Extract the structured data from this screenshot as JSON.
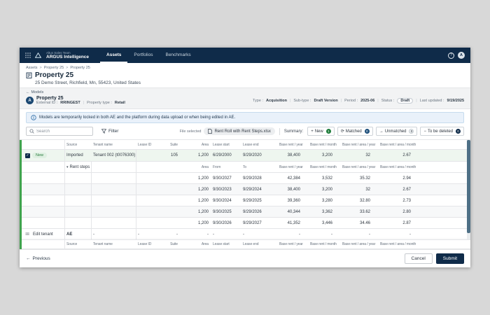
{
  "colors": {
    "navy": "#0f2b49",
    "green": "#3fa34d",
    "green-dark": "#1f7d3c",
    "row-green": "#eef6ef",
    "banner-bg": "#e9f1fa",
    "banner-border": "#c6dbee",
    "slate-scrollbar": "#4e7086",
    "border": "#e4e5e8"
  },
  "icons": {
    "help": "?",
    "avatar": "A",
    "back_arrow": "←",
    "check": "✓",
    "caret_down": "▾",
    "drag": "≡≡",
    "breadcrumb_sep": ">"
  },
  "topbar": {
    "team": "Altus Sales Team",
    "app": "ARGUS Intelligence",
    "tabs": [
      {
        "label": "Assets",
        "active": true
      },
      {
        "label": "Portfolios",
        "active": false
      },
      {
        "label": "Benchmarks",
        "active": false
      }
    ]
  },
  "breadcrumb": [
    "Assets",
    "Property 25",
    "Property 25"
  ],
  "page": {
    "title": "Property 25",
    "address": "25 Demo Street, Richfield, Mn, 55423, United States"
  },
  "model": {
    "back": "Models",
    "avatar": "A",
    "name": "Property 25",
    "meta_left": [
      {
        "label": "External ID",
        "value": "RRINGEST"
      },
      {
        "label": "Property type",
        "value": "Retail"
      }
    ],
    "meta_right": [
      {
        "label": "Type",
        "value": "Acquisition"
      },
      {
        "label": "Sub-type",
        "value": "Draft Version"
      },
      {
        "label": "Period",
        "value": "2025-06"
      },
      {
        "label": "Status",
        "value": "Draft",
        "pill": true
      },
      {
        "label": "Last updated",
        "value": "9/19/2025"
      }
    ]
  },
  "banner": {
    "text": "Models are temporarily locked in both AE and the platform during data upload or when being edited in AE."
  },
  "toolbar": {
    "search_placeholder": "Search",
    "filter": "Filter",
    "file_selected": "File selected",
    "file_name": "Rent Roll with Rent Steps.xlsx",
    "summary": "Summary:",
    "chips": [
      {
        "icon": "+",
        "label": "New",
        "count": "1",
        "badge": "green"
      },
      {
        "icon": "⟳",
        "label": "Matched",
        "count": "0",
        "badge": "navy"
      },
      {
        "icon": "→",
        "label": "Unmatched",
        "count": "0",
        "badge": "light"
      },
      {
        "icon": "−",
        "label": "To be deleted",
        "count": "0",
        "badge": "dark"
      }
    ]
  },
  "table": {
    "headers": [
      "",
      "Source",
      "Tenant name",
      "Lease ID",
      "Suite",
      "Area",
      "Lease start",
      "Lease end",
      "Base rent / year",
      "Base rent / month",
      "Base rent / area / year",
      "Base rent / area / month"
    ],
    "new_row": {
      "status": "New",
      "source": "Imported",
      "tenant": "Tenant 002 (t0076300)",
      "lease_id": "",
      "suite": "105",
      "area": "1,200",
      "lease_start": "6/29/2000",
      "lease_end": "9/29/2020",
      "rent_year": "38,400",
      "rent_month": "3,200",
      "rent_area_year": "32",
      "rent_area_month": "2.67"
    },
    "steps_label": "Rent steps",
    "steps_headers": {
      "area": "Area",
      "from": "From",
      "to": "To"
    },
    "steps": [
      [
        "1,200",
        "9/30/2027",
        "9/29/2028",
        "42,384",
        "3,532",
        "35.32",
        "2.94"
      ],
      [
        "1,200",
        "9/30/2023",
        "9/29/2024",
        "38,400",
        "3,200",
        "32",
        "2.67"
      ],
      [
        "1,200",
        "9/30/2024",
        "9/29/2025",
        "39,360",
        "3,280",
        "32.80",
        "2.73"
      ],
      [
        "1,200",
        "9/30/2025",
        "9/29/2026",
        "40,344",
        "3,362",
        "33.62",
        "2.80"
      ],
      [
        "1,200",
        "9/30/2026",
        "9/29/2027",
        "41,352",
        "3,446",
        "34.46",
        "2.87"
      ]
    ],
    "edit_row": {
      "label": "Edit tenant",
      "source": "AE",
      "cells": [
        "-",
        "-",
        "-",
        "-",
        "-",
        "-",
        "-",
        "-",
        "-",
        "-"
      ]
    }
  },
  "footer": {
    "previous": "Previous",
    "cancel": "Cancel",
    "submit": "Submit"
  }
}
